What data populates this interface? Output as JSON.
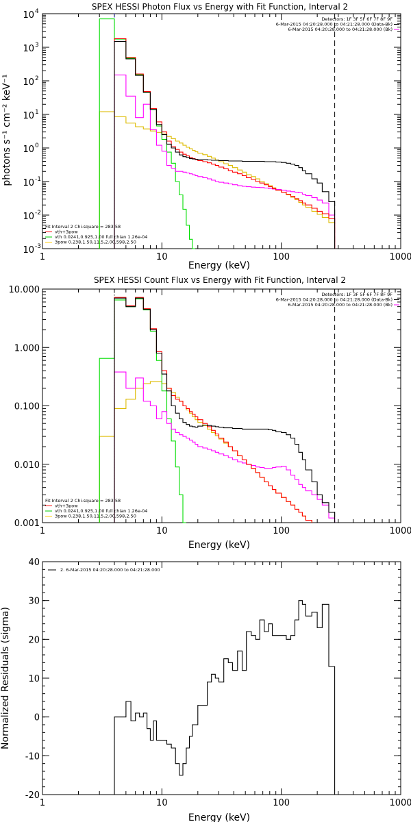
{
  "chart_data": [
    {
      "type": "line",
      "title": "SPEX HESSI Photon Flux vs Energy with Fit Function, Interval 2",
      "xlabel": "Energy (keV)",
      "ylabel": "photons s⁻¹ cm⁻² keV⁻¹",
      "xscale": "log",
      "yscale": "log",
      "xlim": [
        1,
        1000
      ],
      "ylim": [
        0.001,
        10000
      ],
      "xticks": [
        1,
        10,
        100,
        1000
      ],
      "xtick_labels": [
        "1",
        "10",
        "100",
        "1000"
      ],
      "yticks": [
        0.001,
        0.01,
        0.1,
        1,
        10,
        100,
        1000,
        10000
      ],
      "ytick_labels": [
        {
          "base": "10",
          "exp": "-3"
        },
        {
          "base": "10",
          "exp": "-2"
        },
        {
          "base": "10",
          "exp": "-1"
        },
        {
          "base": "10",
          "exp": "0"
        },
        {
          "base": "10",
          "exp": "1"
        },
        {
          "base": "10",
          "exp": "2"
        },
        {
          "base": "10",
          "exp": "3"
        },
        {
          "base": "10",
          "exp": "4"
        }
      ],
      "vlines": [
        {
          "x": 4,
          "style": "dotted",
          "color": "#0000ff"
        },
        {
          "x": 280,
          "style": "dashed",
          "color": "#000000"
        }
      ],
      "legend_top": [
        {
          "text": "Detectors: 1F 3F 5F 6F 7F 8F 9F",
          "color": "#000000"
        },
        {
          "text": "6-Mar-2015 04:20:28.000 to 04:21:28.000 (Data-Bk)",
          "color": "#000000"
        },
        {
          "text": "6-Mar-2015 04:20:28.000 to 04:21:28.000 (Bk)",
          "color": "#ff00ff"
        }
      ],
      "legend_bottom": [
        {
          "text": "Fit Interval 2   Chi-square = 283.58",
          "color": "#000000"
        },
        {
          "text": "vth+3pow",
          "color": "#ff0000"
        },
        {
          "text": "vth 0.0241,0.925,1.00  full chian 1.26e-04",
          "color": "#00cc00"
        },
        {
          "text": "3pow 0.238,1.50,11.5,2.00,598,2.50",
          "color": "#ffcc00"
        }
      ],
      "edges": [
        3,
        4,
        4.5,
        5,
        5.5,
        6,
        6.5,
        7,
        7.5,
        8,
        8.5,
        9,
        9.5,
        10,
        11,
        12,
        13,
        14,
        15,
        16,
        17,
        18,
        19,
        20,
        22,
        24,
        26,
        28,
        30,
        33,
        36,
        39,
        43,
        47,
        51,
        56,
        61,
        66,
        72,
        78,
        84,
        90,
        100,
        110,
        120,
        130,
        140,
        150,
        160,
        180,
        200,
        220,
        250,
        280
      ],
      "series": [
        {
          "name": "Data-Bk",
          "color": "#000000",
          "values": [
            null,
            1500,
            1500,
            450,
            450,
            145,
            145,
            45,
            45,
            14,
            14,
            5,
            5,
            2.5,
            1.3,
            1,
            0.75,
            0.62,
            0.55,
            0.52,
            0.48,
            0.47,
            0.46,
            0.45,
            0.45,
            0.44,
            0.43,
            0.43,
            0.42,
            0.42,
            0.41,
            0.41,
            0.41,
            0.4,
            0.4,
            0.4,
            0.4,
            0.4,
            0.39,
            0.39,
            0.39,
            0.38,
            0.37,
            0.35,
            0.33,
            0.3,
            0.26,
            0.21,
            0.17,
            0.12,
            0.09,
            0.05,
            0.025
          ]
        },
        {
          "name": "Bk",
          "color": "#ff00ff",
          "values": [
            null,
            150,
            150,
            35,
            35,
            8,
            8,
            20,
            20,
            3.5,
            3.5,
            1.2,
            1.2,
            0.8,
            0.3,
            0.25,
            0.2,
            0.2,
            0.19,
            0.18,
            0.17,
            0.16,
            0.15,
            0.14,
            0.13,
            0.12,
            0.11,
            0.1,
            0.095,
            0.09,
            0.085,
            0.08,
            0.075,
            0.072,
            0.07,
            0.068,
            0.067,
            0.066,
            0.064,
            0.062,
            0.06,
            0.058,
            0.055,
            0.052,
            0.05,
            0.048,
            0.046,
            0.042,
            0.038,
            0.033,
            0.028,
            0.023,
            0.01
          ]
        },
        {
          "name": "vth+3pow",
          "color": "#ff0000",
          "values": [
            null,
            1800,
            1800,
            500,
            500,
            160,
            160,
            48,
            48,
            15,
            15,
            6,
            6,
            3,
            1.6,
            1.1,
            0.9,
            0.75,
            0.65,
            0.58,
            0.52,
            0.48,
            0.45,
            0.42,
            0.39,
            0.36,
            0.33,
            0.3,
            0.27,
            0.24,
            0.21,
            0.19,
            0.17,
            0.15,
            0.13,
            0.115,
            0.1,
            0.09,
            0.08,
            0.07,
            0.062,
            0.055,
            0.048,
            0.042,
            0.036,
            0.031,
            0.027,
            0.023,
            0.02,
            0.016,
            0.013,
            0.011,
            0.008
          ]
        },
        {
          "name": "vth",
          "color": "#00dd00",
          "values": [
            7000,
            1750,
            1750,
            470,
            470,
            155,
            155,
            46,
            46,
            14,
            14,
            4.5,
            4.5,
            1.8,
            0.75,
            0.35,
            0.1,
            0.04,
            0.015,
            0.005,
            0.0019,
            0.001,
            null,
            null,
            null,
            null,
            null,
            null,
            null,
            null,
            null,
            null,
            null,
            null,
            null,
            null,
            null,
            null,
            null,
            null,
            null,
            null,
            null,
            null,
            null,
            null,
            null,
            null,
            null,
            null,
            null,
            null,
            null
          ]
        },
        {
          "name": "3pow",
          "color": "#ddbb00",
          "values": [
            12,
            8.5,
            8.5,
            5.5,
            5.5,
            4.3,
            4.3,
            3.7,
            3.7,
            3.2,
            3.2,
            2.9,
            2.9,
            2.6,
            2.2,
            1.9,
            1.6,
            1.4,
            1.2,
            1.05,
            0.95,
            0.85,
            0.77,
            0.7,
            0.63,
            0.56,
            0.5,
            0.44,
            0.39,
            0.34,
            0.3,
            0.26,
            0.22,
            0.19,
            0.16,
            0.14,
            0.12,
            0.1,
            0.087,
            0.075,
            0.065,
            0.056,
            0.048,
            0.04,
            0.034,
            0.029,
            0.024,
            0.02,
            0.017,
            0.013,
            0.0105,
            0.0085,
            0.006
          ]
        }
      ]
    },
    {
      "type": "line",
      "title": "SPEX HESSI Count Flux vs Energy with Fit Function, Interval 2",
      "xlabel": "Energy (keV)",
      "ylabel": "",
      "xscale": "log",
      "yscale": "log",
      "xlim": [
        1,
        1000
      ],
      "ylim": [
        0.001,
        10
      ],
      "xticks": [
        1,
        10,
        100,
        1000
      ],
      "xtick_labels": [
        "1",
        "10",
        "100",
        "1000"
      ],
      "yticks": [
        0.001,
        0.01,
        0.1,
        1,
        10
      ],
      "ytick_labels": [
        "0.001",
        "0.010",
        "0.100",
        "1.000",
        "10.000"
      ],
      "vlines": [
        {
          "x": 4,
          "style": "dotted",
          "color": "#000000"
        },
        {
          "x": 280,
          "style": "dashed",
          "color": "#000000"
        }
      ],
      "legend_top": [
        {
          "text": "Detectors: 1F 3F 5F 6F 7F 8F 9F",
          "color": "#000000"
        },
        {
          "text": "6-Mar-2015 04:20:28.000 to 04:21:28.000 (Data-Bk)",
          "color": "#000000"
        },
        {
          "text": "6-Mar-2015 04:20:28.000 to 04:21:28.000 (Bk)",
          "color": "#ff00ff"
        }
      ],
      "legend_bottom": [
        {
          "text": "Fit Interval 2   Chi-square = 283.58",
          "color": "#000000"
        },
        {
          "text": "vth+3pow",
          "color": "#ff0000"
        },
        {
          "text": "vth 0.0241,0.925,1.00  full chian 1.26e-04",
          "color": "#00cc00"
        },
        {
          "text": "3pow 0.238,1.50,11.5,2.00,598,2.50",
          "color": "#ffcc00"
        }
      ],
      "edges": [
        3,
        4,
        4.5,
        5,
        5.5,
        6,
        6.5,
        7,
        7.5,
        8,
        8.5,
        9,
        9.5,
        10,
        11,
        12,
        13,
        14,
        15,
        16,
        17,
        18,
        19,
        20,
        22,
        24,
        26,
        28,
        30,
        33,
        36,
        39,
        43,
        47,
        51,
        56,
        61,
        66,
        72,
        78,
        84,
        90,
        100,
        110,
        120,
        130,
        140,
        150,
        160,
        180,
        200,
        220,
        250,
        280
      ],
      "series": [
        {
          "name": "Data-Bk",
          "color": "#000000",
          "values": [
            null,
            7,
            7,
            5,
            5,
            7,
            7,
            4.5,
            4.5,
            2,
            2,
            0.8,
            0.8,
            0.35,
            0.18,
            0.1,
            0.075,
            0.06,
            0.052,
            0.048,
            0.045,
            0.044,
            0.043,
            0.045,
            0.047,
            0.046,
            0.045,
            0.044,
            0.043,
            0.042,
            0.042,
            0.041,
            0.041,
            0.04,
            0.04,
            0.04,
            0.04,
            0.04,
            0.04,
            0.039,
            0.038,
            0.036,
            0.035,
            0.032,
            0.028,
            0.022,
            0.016,
            0.012,
            0.008,
            0.005,
            0.003,
            0.0022,
            0.0015
          ]
        },
        {
          "name": "Bk",
          "color": "#ff00ff",
          "values": [
            null,
            0.38,
            0.38,
            0.2,
            0.2,
            0.3,
            0.3,
            0.12,
            0.12,
            0.1,
            0.1,
            0.06,
            0.06,
            0.08,
            0.05,
            0.04,
            0.035,
            0.032,
            0.03,
            0.028,
            0.026,
            0.024,
            0.022,
            0.02,
            0.019,
            0.018,
            0.017,
            0.016,
            0.015,
            0.014,
            0.013,
            0.012,
            0.011,
            0.0105,
            0.01,
            0.0095,
            0.009,
            0.0088,
            0.0085,
            0.0085,
            0.0088,
            0.009,
            0.0092,
            0.008,
            0.0065,
            0.0055,
            0.0045,
            0.004,
            0.0035,
            0.003,
            0.0025,
            0.002,
            0.0012
          ]
        },
        {
          "name": "vth+3pow",
          "color": "#ff0000",
          "values": [
            null,
            7.2,
            7.2,
            5.2,
            5.2,
            7.2,
            7.2,
            4.6,
            4.6,
            2.1,
            2.1,
            0.85,
            0.85,
            0.4,
            0.2,
            0.15,
            0.13,
            0.12,
            0.1,
            0.09,
            0.08,
            0.072,
            0.065,
            0.058,
            0.05,
            0.044,
            0.038,
            0.033,
            0.028,
            0.024,
            0.02,
            0.017,
            0.014,
            0.012,
            0.01,
            0.0085,
            0.0072,
            0.006,
            0.005,
            0.0043,
            0.0037,
            0.0032,
            0.0027,
            0.0023,
            0.002,
            0.0017,
            0.0015,
            0.0013,
            0.0011,
            null,
            null,
            null,
            null
          ]
        },
        {
          "name": "vth",
          "color": "#00dd00",
          "values": [
            0.65,
            6.5,
            6.5,
            5,
            5,
            6.8,
            6.8,
            4.4,
            4.4,
            1.9,
            1.9,
            0.6,
            0.6,
            0.18,
            0.06,
            0.025,
            0.009,
            0.003,
            0.001,
            null,
            null,
            null,
            null,
            null,
            null,
            null,
            null,
            null,
            null,
            null,
            null,
            null,
            null,
            null,
            null,
            null,
            null,
            null,
            null,
            null,
            null,
            null,
            null,
            null,
            null,
            null,
            null,
            null,
            null,
            null,
            null,
            null,
            null
          ]
        },
        {
          "name": "3pow",
          "color": "#ddbb00",
          "values": [
            0.03,
            0.09,
            0.09,
            0.13,
            0.13,
            0.2,
            0.2,
            0.24,
            0.24,
            0.26,
            0.26,
            0.26,
            0.26,
            0.24,
            0.2,
            0.17,
            0.14,
            0.12,
            0.1,
            0.085,
            0.075,
            0.065,
            0.058,
            0.052,
            0.046,
            0.04,
            0.035,
            0.031,
            0.027,
            0.023,
            0.02,
            0.017,
            0.014,
            0.012,
            0.01,
            0.0085,
            0.0072,
            0.006,
            0.005,
            0.0043,
            0.0037,
            0.0032,
            0.0027,
            0.0023,
            0.002,
            0.0017,
            0.0015,
            0.0013,
            0.0011,
            null,
            null,
            null,
            null
          ]
        }
      ]
    },
    {
      "type": "line",
      "title": "",
      "xlabel": "Energy (keV)",
      "ylabel": "Normalized Residuals (sigma)",
      "xscale": "log",
      "yscale": "linear",
      "xlim": [
        1,
        1000
      ],
      "ylim": [
        -20,
        40
      ],
      "xticks": [
        1,
        10,
        100,
        1000
      ],
      "xtick_labels": [
        "1",
        "10",
        "100",
        "1000"
      ],
      "yticks": [
        -20,
        -10,
        0,
        10,
        20,
        30,
        40
      ],
      "ytick_labels": [
        "-20",
        "-10",
        "0",
        "10",
        "20",
        "30",
        "40"
      ],
      "vlines": [],
      "legend_top": [
        {
          "text": "2.  6-Mar-2015 04:20:28.000 to 04:21:28.000",
          "color": "#000000"
        }
      ],
      "legend_bottom": [],
      "edges": [
        4,
        4.5,
        5,
        5.5,
        6,
        6.5,
        7,
        7.5,
        8,
        8.5,
        9,
        9.5,
        10,
        11,
        12,
        13,
        14,
        15,
        16,
        17,
        18,
        19,
        20,
        22,
        24,
        26,
        28,
        30,
        33,
        36,
        39,
        43,
        47,
        51,
        56,
        61,
        66,
        72,
        78,
        84,
        90,
        100,
        110,
        120,
        130,
        140,
        150,
        160,
        180,
        200,
        220,
        250,
        280
      ],
      "drop_to": -20,
      "series": [
        {
          "name": "",
          "color": "#000000",
          "values": [
            0,
            0,
            4,
            -1,
            1,
            0,
            1,
            -3,
            -6,
            -1,
            -6,
            -6,
            -6,
            -7,
            -8,
            -12,
            -15,
            -12,
            -8,
            -5,
            -2,
            -2,
            3,
            3,
            9,
            11,
            10,
            9,
            15,
            14,
            12,
            17,
            12,
            22,
            21,
            20,
            25,
            22,
            24,
            21,
            21,
            21,
            20,
            21,
            25,
            30,
            29,
            26,
            27,
            23,
            29,
            13
          ]
        }
      ]
    }
  ]
}
